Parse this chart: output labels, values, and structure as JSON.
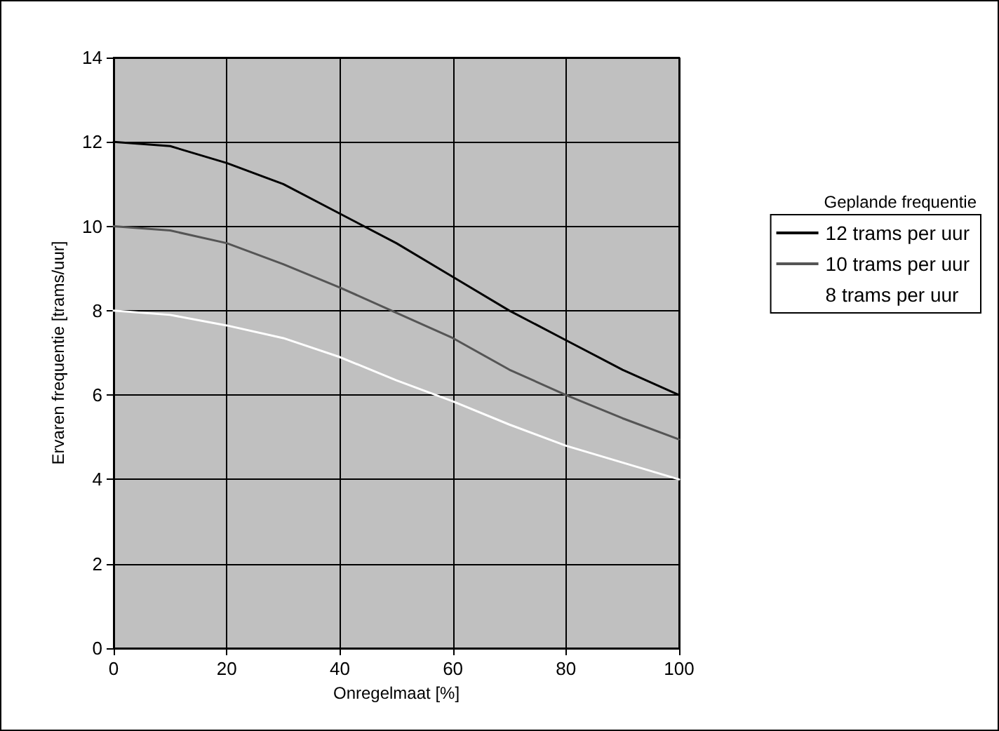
{
  "chart_data": {
    "type": "line",
    "xlabel": "Onregelmaat [%]",
    "ylabel": "Ervaren frequentie [trams/uur]",
    "legend_title": "Geplande frequentie",
    "x": [
      0,
      10,
      20,
      30,
      40,
      50,
      60,
      70,
      80,
      90,
      100
    ],
    "xlim": [
      0,
      100
    ],
    "xticks": [
      0,
      20,
      40,
      60,
      80,
      100
    ],
    "ylim": [
      0,
      14
    ],
    "yticks": [
      0,
      2,
      4,
      6,
      8,
      10,
      12,
      14
    ],
    "grid": true,
    "legend": "right",
    "marker": "none",
    "line_style": "solid",
    "series": [
      {
        "name": "12 trams per uur",
        "color": "#000000",
        "values": [
          12,
          11.9,
          11.5,
          11,
          10.3,
          9.6,
          8.8,
          8,
          7.3,
          6.6,
          6
        ]
      },
      {
        "name": "10 trams per uur",
        "color": "#555555",
        "values": [
          10,
          9.9,
          9.6,
          9.1,
          8.55,
          7.95,
          7.35,
          6.6,
          6,
          5.45,
          4.95
        ]
      },
      {
        "name": "8 trams per uur",
        "color": "#ffffff",
        "values": [
          8,
          7.9,
          7.65,
          7.35,
          6.9,
          6.35,
          5.85,
          5.3,
          4.8,
          4.4,
          4
        ]
      }
    ]
  }
}
